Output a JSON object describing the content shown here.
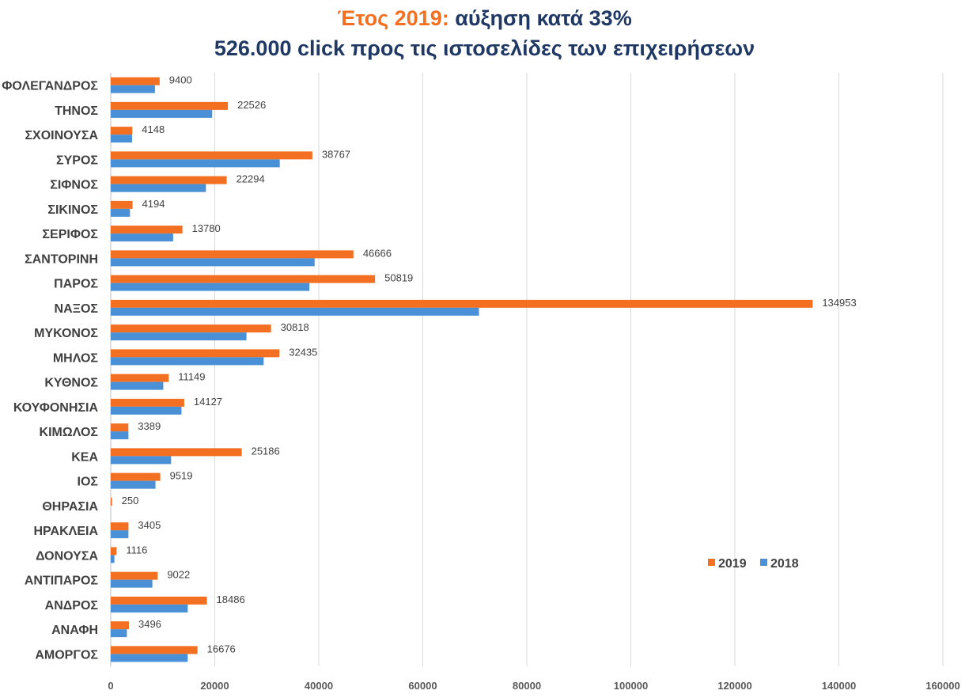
{
  "title": {
    "line1_accent": "Έτος 2019:",
    "line1_rest": "αύξηση κατά 33%",
    "line2": "526.000 click προς τις ιστοσελίδες των επιχειρήσεων"
  },
  "colors": {
    "y2019": "#f36f21",
    "y2018": "#4a90d6",
    "title": "#1f3864",
    "accent": "#f36f21"
  },
  "chart_data": {
    "type": "bar",
    "orientation": "horizontal",
    "categories": [
      "ΦΟΛΕΓΑΝΔΡΟΣ",
      "ΤΗΝΟΣ",
      "ΣΧΟΙΝΟΥΣΑ",
      "ΣΥΡΟΣ",
      "ΣΙΦΝΟΣ",
      "ΣΙΚΙΝΟΣ",
      "ΣΕΡΙΦΟΣ",
      "ΣΑΝΤΟΡΙΝΗ",
      "ΠΑΡΟΣ",
      "ΝΑΞΟΣ",
      "ΜΥΚΟΝΟΣ",
      "ΜΗΛΟΣ",
      "ΚΥΘΝΟΣ",
      "ΚΟΥΦΟΝΗΣΙΑ",
      "ΚΙΜΩΛΟΣ",
      "ΚΕΑ",
      "ΙΟΣ",
      "ΘΗΡΑΣΙΑ",
      "ΗΡΑΚΛΕΙΑ",
      "ΔΟΝΟΥΣΑ",
      "ΑΝΤΙΠΑΡΟΣ",
      "ΑΝΔΡΟΣ",
      "ΑΝΑΦΗ",
      "ΑΜΟΡΓΟΣ"
    ],
    "series": [
      {
        "name": "2019",
        "values": [
          9400,
          22526,
          4148,
          38767,
          22294,
          4194,
          13780,
          46666,
          50819,
          134953,
          30818,
          32435,
          11149,
          14127,
          3389,
          25186,
          9519,
          250,
          3405,
          1116,
          9022,
          18486,
          3496,
          16676
        ]
      },
      {
        "name": "2018",
        "values": [
          8500,
          19500,
          4100,
          32500,
          18300,
          3700,
          12000,
          39200,
          38200,
          70800,
          26100,
          29400,
          10100,
          13600,
          3400,
          11600,
          8600,
          0,
          3400,
          700,
          8000,
          14800,
          3100,
          14800
        ]
      }
    ],
    "xlim": [
      0,
      160000
    ],
    "xticks": [
      "0",
      "20000",
      "40000",
      "60000",
      "80000",
      "100000",
      "120000",
      "140000",
      "160000"
    ],
    "grid": true,
    "legend_position": "bottom-right"
  }
}
